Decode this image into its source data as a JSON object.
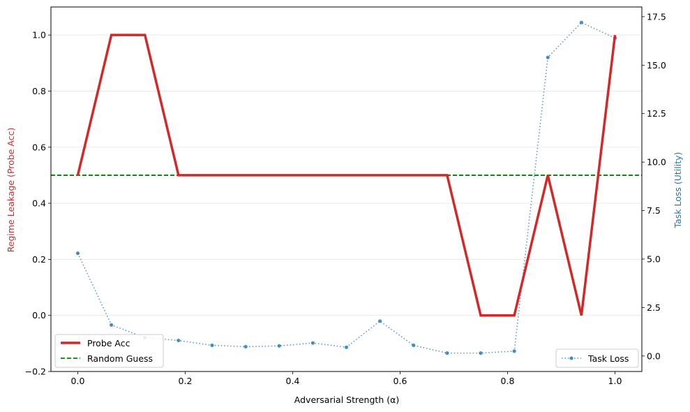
{
  "chart_data": {
    "type": "line",
    "xlabel": "Adversarial Strength (α)",
    "ylabel_left": "Regime Leakage (Probe Acc)",
    "ylabel_right": "Task Loss (Utility)",
    "xlim": [
      -0.05,
      1.05
    ],
    "ylim_left": [
      -0.2,
      1.1
    ],
    "ylim_right": [
      -0.8,
      18.0
    ],
    "x_ticks": [
      0.0,
      0.2,
      0.4,
      0.6,
      0.8,
      1.0
    ],
    "x_tick_labels": [
      "0.0",
      "0.2",
      "0.4",
      "0.6",
      "0.8",
      "1.0"
    ],
    "y_left_ticks": [
      -0.2,
      0.0,
      0.2,
      0.4,
      0.6,
      0.8,
      1.0
    ],
    "y_left_tick_labels": [
      "−0.2",
      "0.0",
      "0.2",
      "0.4",
      "0.6",
      "0.8",
      "1.0"
    ],
    "y_right_ticks": [
      0.0,
      2.5,
      5.0,
      7.5,
      10.0,
      12.5,
      15.0,
      17.5
    ],
    "y_right_tick_labels": [
      "0.0",
      "2.5",
      "5.0",
      "7.5",
      "10.0",
      "12.5",
      "15.0",
      "17.5"
    ],
    "grid": "horizontal",
    "x": [
      0.0,
      0.0625,
      0.125,
      0.1875,
      0.25,
      0.3125,
      0.375,
      0.4375,
      0.5,
      0.5625,
      0.625,
      0.6875,
      0.75,
      0.8125,
      0.875,
      0.9375,
      1.0
    ],
    "series": [
      {
        "name": "Probe Acc",
        "axis": "left",
        "color": "#d62728",
        "style": "solid",
        "values": [
          0.5,
          1.0,
          1.0,
          0.5,
          0.5,
          0.5,
          0.5,
          0.5,
          0.5,
          0.5,
          0.5,
          0.5,
          0.0,
          0.0,
          0.5,
          0.0,
          1.0
        ]
      },
      {
        "name": "Task Loss",
        "axis": "right",
        "color": "#1f77b4",
        "style": "dotted",
        "marker": "circle",
        "values": [
          5.3,
          1.6,
          0.95,
          0.8,
          0.55,
          0.48,
          0.52,
          0.67,
          0.45,
          1.8,
          0.55,
          0.15,
          0.15,
          0.25,
          15.4,
          17.2,
          16.4
        ]
      }
    ],
    "reference_lines": [
      {
        "name": "Random Guess",
        "axis": "left",
        "y": 0.5,
        "color": "#008000",
        "style": "dashed"
      }
    ],
    "legend_left": {
      "placement": "lower-left",
      "entries": [
        "Probe Acc",
        "Random Guess"
      ]
    },
    "legend_right": {
      "placement": "lower-right",
      "entries": [
        "Task Loss"
      ]
    }
  }
}
